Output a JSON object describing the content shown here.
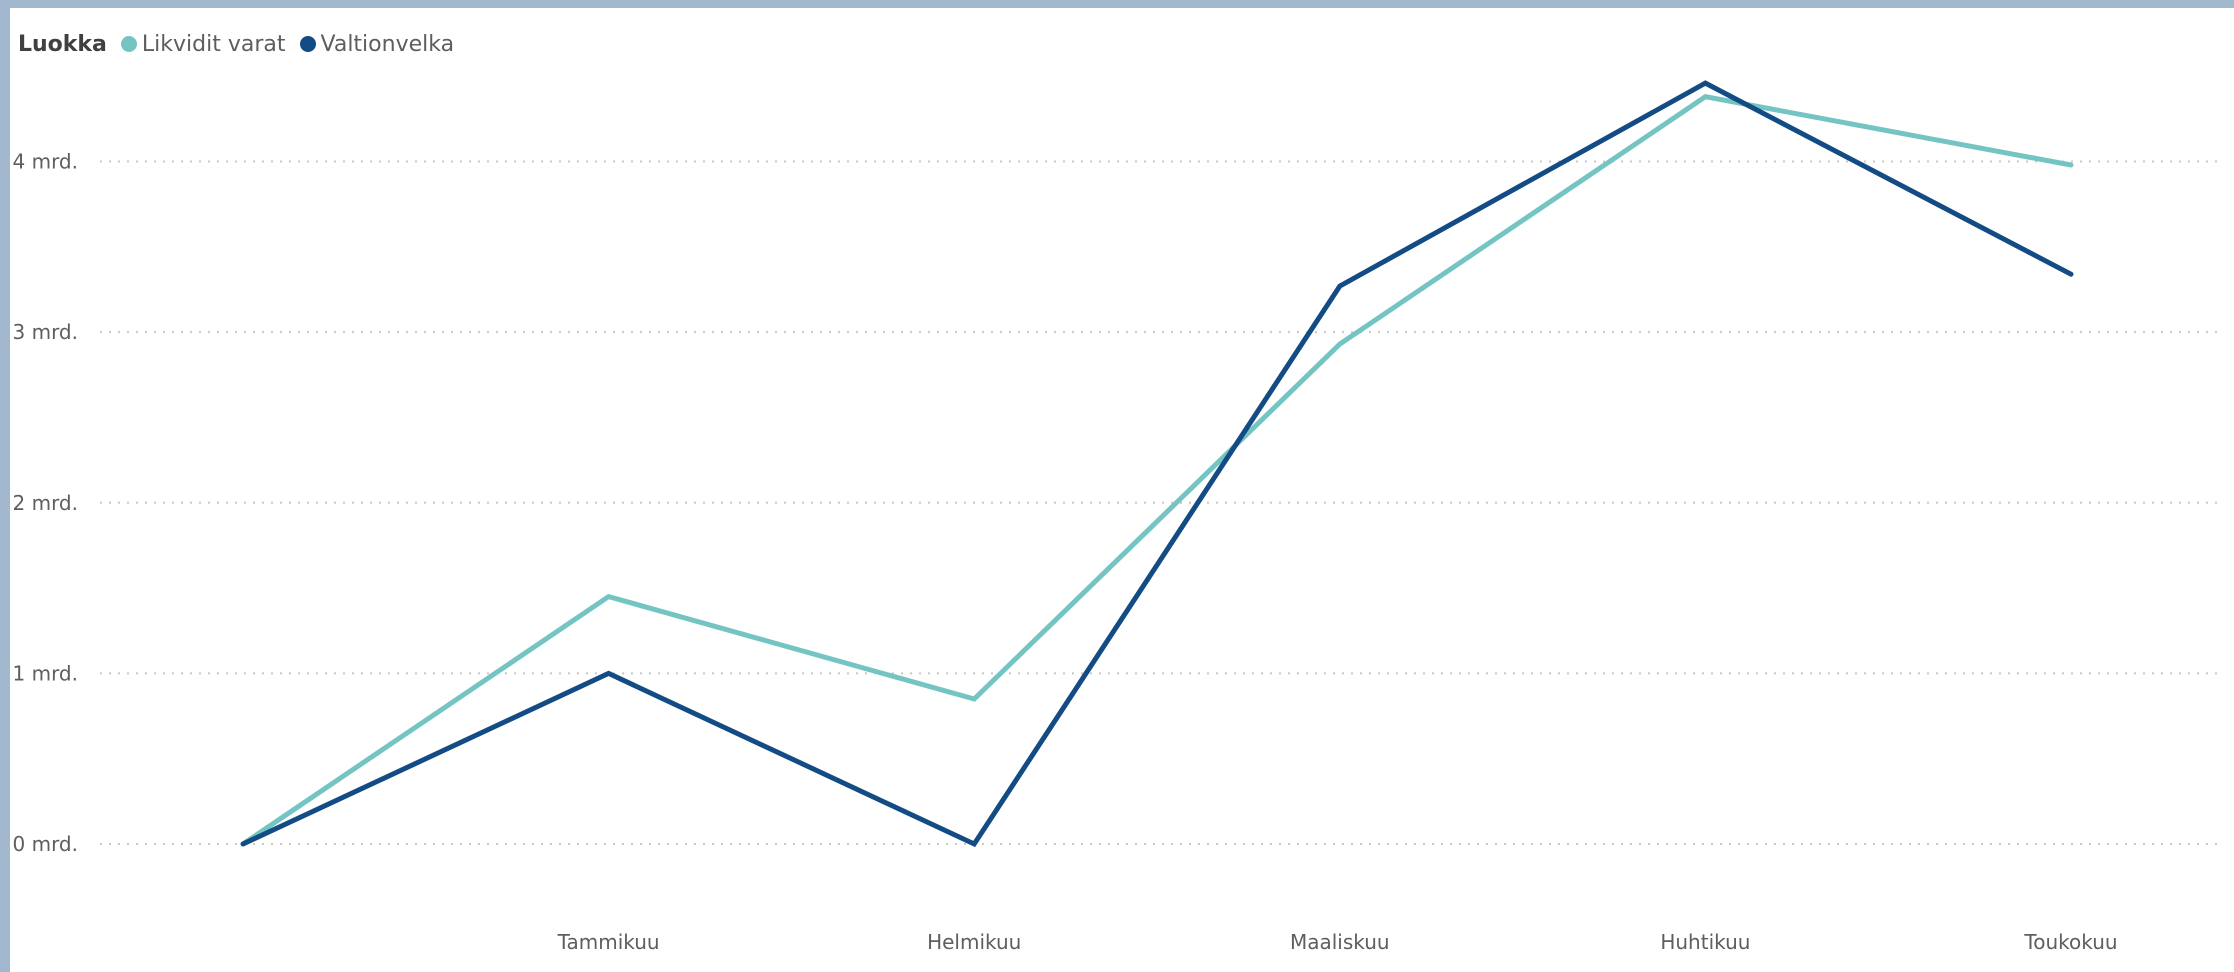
{
  "legend": {
    "title": "Luokka"
  },
  "colors": {
    "likvidit": "#74c4c4",
    "valtionvelka": "#134b84",
    "grid": "#c8c8c8",
    "text": "#605e5c"
  },
  "chart_data": {
    "type": "line",
    "title": "",
    "xlabel": "",
    "ylabel": "",
    "categories": [
      "",
      "Tammikuu",
      "Helmikuu",
      "Maaliskuu",
      "Huhtikuu",
      "Toukokuu"
    ],
    "series": [
      {
        "name": "Likvidit varat",
        "values": [
          0,
          1.45,
          0.85,
          2.93,
          4.38,
          3.98
        ]
      },
      {
        "name": "Valtionvelka",
        "values": [
          0,
          1.0,
          0,
          3.27,
          4.46,
          3.34
        ]
      }
    ],
    "yticks": [
      {
        "value": 0,
        "label": "0 mrd."
      },
      {
        "value": 1,
        "label": "1 mrd."
      },
      {
        "value": 2,
        "label": "2 mrd."
      },
      {
        "value": 3,
        "label": "3 mrd."
      },
      {
        "value": 4,
        "label": "4 mrd."
      }
    ],
    "ylim": [
      -0.75,
      4.9
    ],
    "grid": true,
    "legend_position": "top-left"
  }
}
